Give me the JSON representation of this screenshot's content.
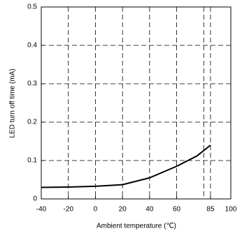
{
  "chart_data": {
    "type": "line",
    "x_label": "Ambient temperature (℃)",
    "y_label": "LED turn off time (mA)",
    "x": [
      -40,
      -20,
      0,
      20,
      40,
      60,
      75,
      85
    ],
    "series": [
      {
        "color": "#000000",
        "values": [
          0.03,
          0.031,
          0.033,
          0.037,
          0.055,
          0.085,
          0.112,
          0.14
        ]
      }
    ],
    "xlim": [
      -40,
      100
    ],
    "xticks": [
      -40,
      -20,
      0,
      20,
      40,
      60,
      85,
      100
    ],
    "xgrid": [
      -20,
      0,
      20,
      40,
      60,
      80,
      85
    ],
    "ylim": [
      0,
      0.5
    ],
    "yticks": [
      0,
      0.1,
      0.2,
      0.3,
      0.4,
      0.5
    ],
    "grid": true
  }
}
